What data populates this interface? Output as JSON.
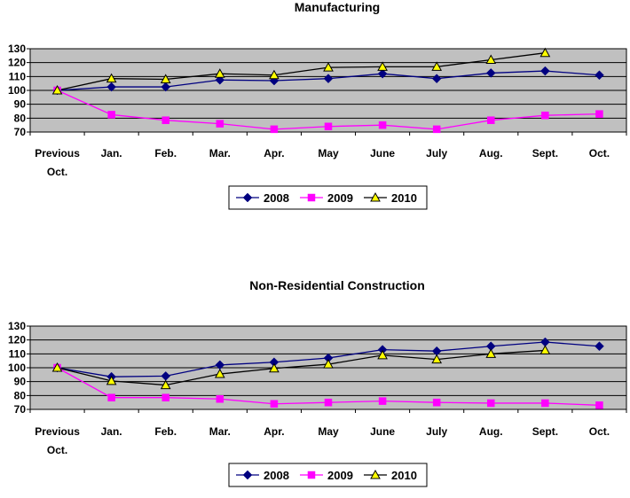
{
  "chart_data": [
    {
      "type": "line",
      "title": "Manufacturing",
      "categories": [
        [
          "Previous",
          "Oct."
        ],
        [
          "Jan."
        ],
        [
          "Feb."
        ],
        [
          "Mar."
        ],
        [
          "Apr."
        ],
        [
          "May"
        ],
        [
          "June"
        ],
        [
          "July"
        ],
        [
          "Aug."
        ],
        [
          "Sept."
        ],
        [
          "Oct."
        ]
      ],
      "ylim": [
        70,
        130
      ],
      "yticks": [
        70,
        80,
        90,
        100,
        110,
        120,
        130
      ],
      "grid": true,
      "legend": "bottom",
      "series": [
        {
          "name": "2008",
          "color": "#000080",
          "marker": "diamond",
          "values": [
            100,
            102.5,
            102.5,
            107.5,
            107,
            108.5,
            112,
            108.5,
            112.5,
            114,
            111
          ]
        },
        {
          "name": "2009",
          "color": "#ff00ff",
          "marker": "square",
          "values": [
            100,
            82.5,
            78.5,
            76,
            72,
            74,
            75,
            72,
            78.5,
            82,
            83
          ]
        },
        {
          "name": "2010",
          "color": "#000000",
          "marker": "triangle",
          "values": [
            100,
            108.5,
            108,
            112,
            111,
            116.5,
            117,
            117,
            122,
            127,
            null
          ]
        }
      ]
    },
    {
      "type": "line",
      "title": "Non-Residential Construction",
      "categories": [
        [
          "Previous",
          "Oct."
        ],
        [
          "Jan."
        ],
        [
          "Feb."
        ],
        [
          "Mar."
        ],
        [
          "Apr."
        ],
        [
          "May"
        ],
        [
          "June"
        ],
        [
          "July"
        ],
        [
          "Aug."
        ],
        [
          "Sept."
        ],
        [
          "Oct."
        ]
      ],
      "ylim": [
        70,
        130
      ],
      "yticks": [
        70,
        80,
        90,
        100,
        110,
        120,
        130
      ],
      "grid": true,
      "legend": "bottom",
      "series": [
        {
          "name": "2008",
          "color": "#000080",
          "marker": "diamond",
          "values": [
            100,
            93.5,
            94,
            102,
            104,
            107,
            113,
            112,
            115.5,
            118.5,
            115.5
          ]
        },
        {
          "name": "2009",
          "color": "#ff00ff",
          "marker": "square",
          "values": [
            100,
            78.5,
            78.5,
            77.5,
            74,
            75,
            76,
            75,
            74.5,
            74.5,
            73
          ]
        },
        {
          "name": "2010",
          "color": "#000000",
          "marker": "triangle",
          "values": [
            100,
            90.5,
            87.5,
            95.5,
            99.5,
            102.5,
            109,
            106,
            110,
            112.5,
            null
          ]
        }
      ]
    }
  ],
  "colors": {
    "plot_bg": "#c0c0c0",
    "triangle_fill": "#ffff00"
  }
}
